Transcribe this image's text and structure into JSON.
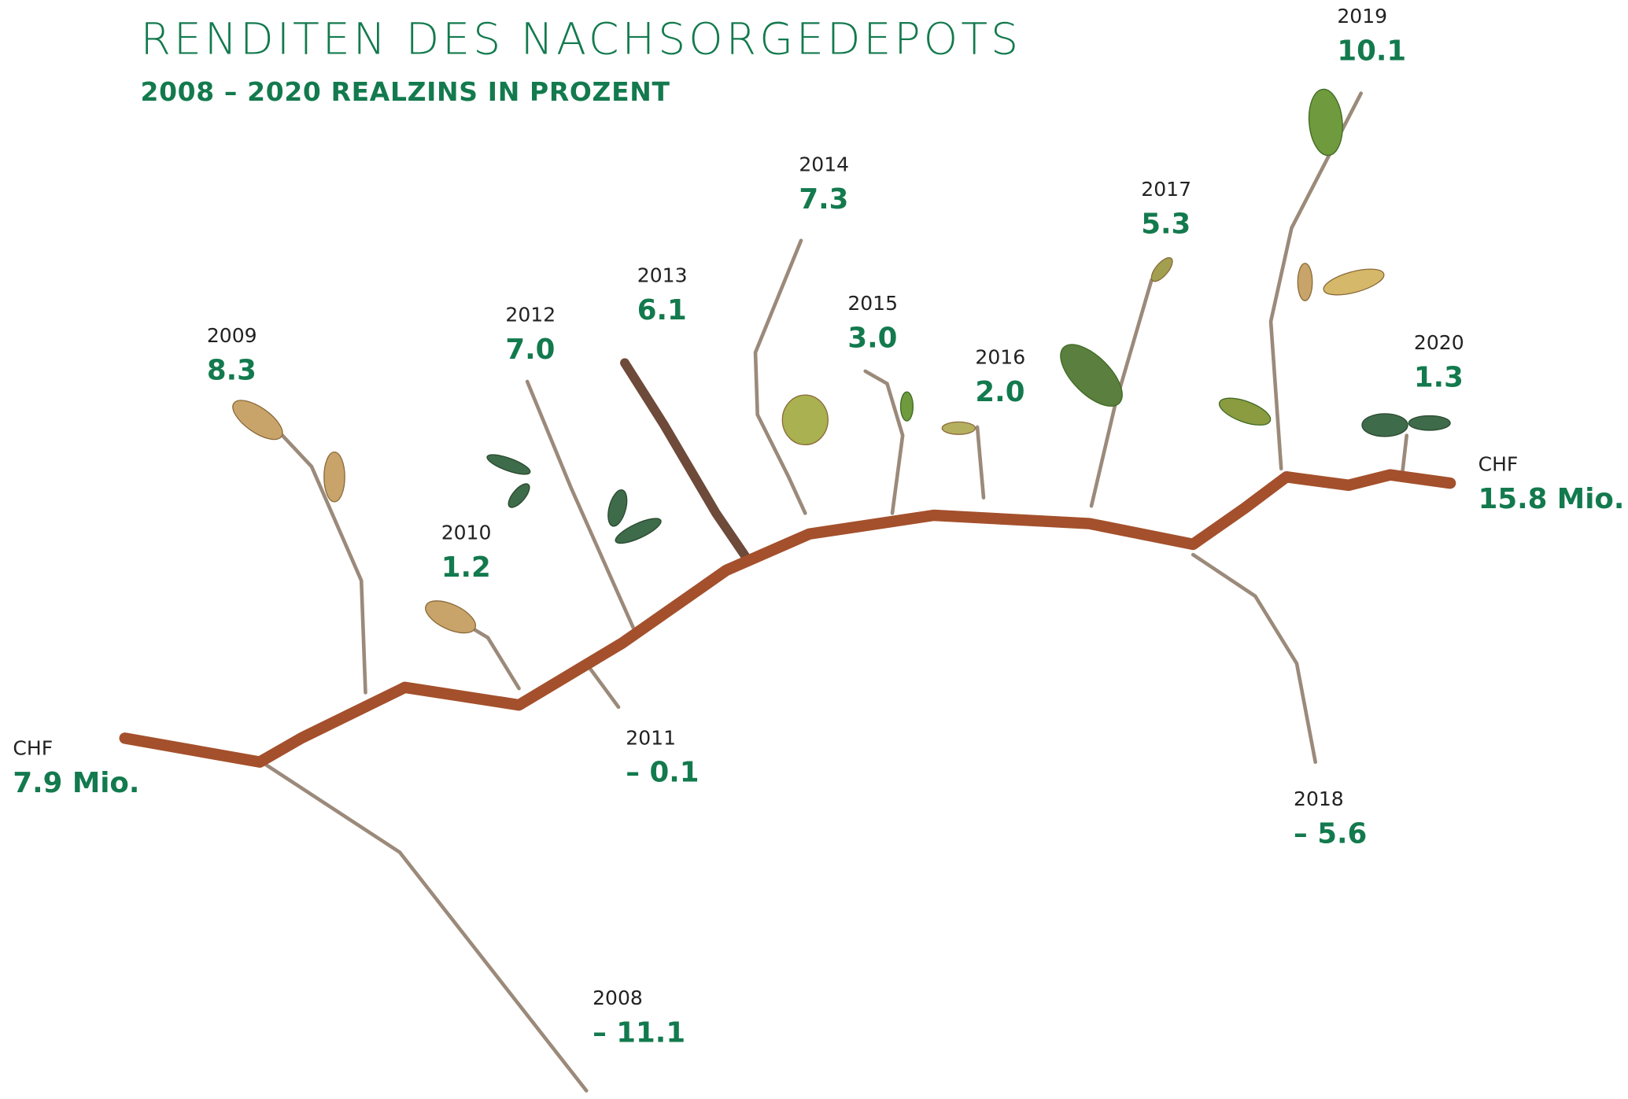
{
  "header": {
    "title": "RENDITEN DES NACHSORGEDEPOTS",
    "subtitle": "2008 – 2020 REALZINS IN PROZENT"
  },
  "start": {
    "label": "CHF",
    "value": "7.9 Mio."
  },
  "end": {
    "label": "CHF",
    "value": "15.8 Mio."
  },
  "years": [
    {
      "year": "2008",
      "value": "– 11.1"
    },
    {
      "year": "2009",
      "value": "8.3"
    },
    {
      "year": "2010",
      "value": "1.2"
    },
    {
      "year": "2011",
      "value": "– 0.1"
    },
    {
      "year": "2012",
      "value": "7.0"
    },
    {
      "year": "2013",
      "value": "6.1"
    },
    {
      "year": "2014",
      "value": "7.3"
    },
    {
      "year": "2015",
      "value": "3.0"
    },
    {
      "year": "2016",
      "value": "2.0"
    },
    {
      "year": "2017",
      "value": "5.3"
    },
    {
      "year": "2018",
      "value": "– 5.6"
    },
    {
      "year": "2019",
      "value": "10.1"
    },
    {
      "year": "2020",
      "value": "1.3"
    }
  ]
}
